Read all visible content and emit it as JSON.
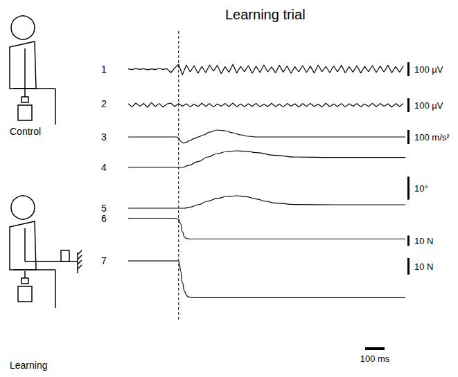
{
  "title": "Learning trial",
  "conditions": [
    "Control",
    "Learning"
  ],
  "time_scale_bar": {
    "value": 100,
    "label": "100 ms"
  },
  "event_time": 0,
  "chart_data": [
    {
      "type": "line",
      "title": "1",
      "color": "#000000",
      "line_style": "solid",
      "grid": false,
      "tick_labels": false,
      "xlim": [
        -260,
        1170
      ],
      "ylim": [
        -100,
        100
      ],
      "scale_bar": {
        "value": 100,
        "label": "100 µV"
      },
      "x": [
        -260,
        -240,
        -220,
        -200,
        -180,
        -160,
        -140,
        -120,
        -100,
        -80,
        -60,
        -40,
        -20,
        0,
        20,
        40,
        60,
        80,
        100,
        120,
        140,
        160,
        180,
        200,
        220,
        240,
        260,
        280,
        300,
        320,
        340,
        360,
        380,
        400,
        420,
        440,
        460,
        480,
        500,
        520,
        540,
        560,
        580,
        600,
        620,
        640,
        660,
        680,
        700,
        720,
        740,
        760,
        780,
        800,
        820,
        840,
        860,
        880,
        900,
        920,
        940,
        960,
        980,
        1000,
        1020,
        1040,
        1060,
        1080,
        1100,
        1120,
        1140,
        1160
      ],
      "values": [
        2,
        -3,
        4,
        -2,
        3,
        -4,
        2,
        -3,
        5,
        -2,
        3,
        -25,
        8,
        35,
        -40,
        30,
        -20,
        25,
        -30,
        20,
        -25,
        30,
        -15,
        28,
        -32,
        18,
        -22,
        35,
        -28,
        20,
        -18,
        26,
        -30,
        22,
        -24,
        30,
        -20,
        16,
        -26,
        28,
        -22,
        24,
        -30,
        18,
        -20,
        26,
        -24,
        22,
        -28,
        30,
        -18,
        20,
        -25,
        24,
        -20,
        28,
        -26,
        18,
        -22,
        25,
        -28,
        20,
        -18,
        26,
        -24,
        22,
        -20,
        28,
        -26,
        18,
        -22,
        24
      ]
    },
    {
      "type": "line",
      "title": "2",
      "color": "#000000",
      "line_style": "solid",
      "grid": false,
      "tick_labels": false,
      "xlim": [
        -260,
        1170
      ],
      "ylim": [
        -100,
        100
      ],
      "scale_bar": {
        "value": 100,
        "label": "100 µV"
      },
      "x": [
        -260,
        -240,
        -220,
        -200,
        -180,
        -160,
        -140,
        -120,
        -100,
        -80,
        -60,
        -40,
        -20,
        0,
        20,
        40,
        60,
        80,
        100,
        120,
        140,
        160,
        180,
        200,
        220,
        240,
        260,
        280,
        300,
        320,
        340,
        360,
        380,
        400,
        420,
        440,
        460,
        480,
        500,
        520,
        540,
        560,
        580,
        600,
        620,
        640,
        660,
        680,
        700,
        720,
        740,
        760,
        780,
        800,
        820,
        840,
        860,
        880,
        900,
        920,
        940,
        960,
        980,
        1000,
        1020,
        1040,
        1060,
        1080,
        1100,
        1120,
        1140,
        1160
      ],
      "values": [
        10,
        -12,
        15,
        -8,
        12,
        -15,
        18,
        -10,
        12,
        -14,
        8,
        15,
        -10,
        12,
        -8,
        10,
        -12,
        8,
        -10,
        14,
        -9,
        11,
        -13,
        9,
        -8,
        12,
        -10,
        15,
        -12,
        9,
        -11,
        10,
        -9,
        13,
        -12,
        8,
        -10,
        14,
        -11,
        9,
        -13,
        12,
        -8,
        10,
        -14,
        11,
        -9,
        13,
        -10,
        8,
        -12,
        14,
        -11,
        9,
        -10,
        12,
        -13,
        10,
        -8,
        11,
        -12,
        9,
        -10,
        13,
        -11,
        12,
        -9,
        10,
        -14,
        11,
        -10,
        12
      ]
    },
    {
      "type": "line",
      "title": "3",
      "color": "#000000",
      "line_style": "smooth",
      "grid": false,
      "tick_labels": false,
      "xlim": [
        -260,
        1170
      ],
      "ylim": [
        -100,
        100
      ],
      "scale_bar": {
        "value": 100,
        "label": "100 m/s²"
      },
      "x": [
        -260,
        -10,
        0,
        10,
        25,
        40,
        60,
        80,
        100,
        130,
        160,
        200,
        240,
        280,
        320,
        360,
        400,
        600,
        900,
        1170
      ],
      "values": [
        0,
        0,
        -8,
        -30,
        -45,
        -38,
        -25,
        -12,
        0,
        15,
        35,
        50,
        45,
        30,
        15,
        5,
        0,
        0,
        0,
        0
      ]
    },
    {
      "type": "line",
      "title": "4",
      "color": "#000000",
      "line_style": "smooth",
      "grid": false,
      "tick_labels": false,
      "xlim": [
        -260,
        1170
      ],
      "ylim": [
        -3,
        9
      ],
      "scale_bar": {
        "value": 10,
        "label": "10°"
      },
      "x": [
        -260,
        0,
        20,
        50,
        100,
        150,
        200,
        250,
        300,
        350,
        400,
        500,
        600,
        800,
        1170
      ],
      "values": [
        0,
        0,
        0,
        0.8,
        2.5,
        4.5,
        6,
        6.9,
        7.2,
        7,
        6.4,
        5.2,
        4.5,
        4.3,
        4.3
      ]
    },
    {
      "type": "line",
      "title": "5",
      "color": "#000000",
      "line_style": "smooth",
      "grid": false,
      "tick_labels": false,
      "xlim": [
        -260,
        1170
      ],
      "ylim": [
        -4.5,
        7.5
      ],
      "x": [
        -260,
        0,
        30,
        60,
        100,
        150,
        200,
        250,
        300,
        350,
        400,
        450,
        500,
        600,
        800,
        1170
      ],
      "values": [
        0,
        0,
        0,
        0.5,
        1.5,
        3,
        4.3,
        5.1,
        5.4,
        5,
        4,
        3,
        2.2,
        1.6,
        1.5,
        1.5
      ]
    },
    {
      "type": "line",
      "title": "6",
      "color": "#000000",
      "line_style": "smooth",
      "grid": false,
      "tick_labels": false,
      "xlim": [
        -260,
        1170
      ],
      "ylim": [
        -5,
        25
      ],
      "scale_bar": {
        "value": 10,
        "label": "10 N"
      },
      "x": [
        -260,
        -20,
        0,
        10,
        20,
        30,
        40,
        60,
        1170
      ],
      "values": [
        20,
        20,
        19,
        15,
        7,
        2,
        0.5,
        0,
        0
      ]
    },
    {
      "type": "line",
      "title": "7",
      "color": "#000000",
      "line_style": "smooth",
      "grid": false,
      "tick_labels": false,
      "xlim": [
        -260,
        1170
      ],
      "ylim": [
        -4,
        27
      ],
      "scale_bar": {
        "value": 10,
        "label": "10 N"
      },
      "x": [
        -260,
        0,
        5,
        10,
        20,
        30,
        40,
        50,
        70,
        1170
      ],
      "values": [
        22,
        22,
        20,
        16,
        9,
        4,
        1.5,
        0.5,
        0,
        0
      ]
    }
  ]
}
